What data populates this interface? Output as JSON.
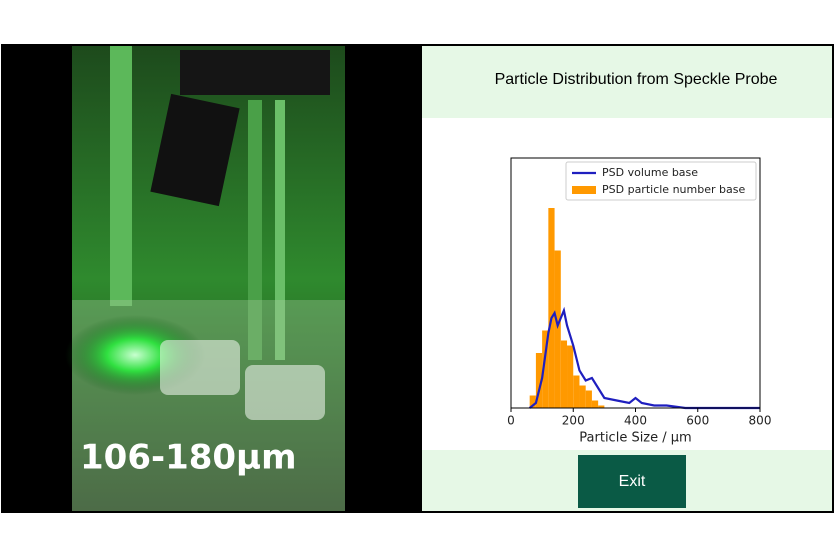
{
  "video": {
    "overlay_text": "106-180µm"
  },
  "header": {
    "title": "Particle Distribution from Speckle Probe"
  },
  "chart_data": {
    "type": "histogram",
    "xlabel": "Particle Size / µm",
    "xlim": [
      0,
      800
    ],
    "xticks": [
      0,
      200,
      400,
      600,
      800
    ],
    "ylim": [
      0,
      1
    ],
    "legend": "top-right",
    "bins": [
      60,
      80,
      100,
      120,
      140,
      160,
      180,
      200,
      220,
      240,
      260,
      280,
      300
    ],
    "series": [
      {
        "name": "PSD volume base",
        "type": "line",
        "color": "#1f1fbf",
        "x": [
          60,
          80,
          100,
          120,
          130,
          140,
          150,
          160,
          170,
          180,
          200,
          220,
          240,
          260,
          280,
          300,
          340,
          380,
          400,
          420,
          460,
          500,
          560,
          620,
          700,
          800
        ],
        "values": [
          0,
          0.02,
          0.12,
          0.3,
          0.36,
          0.38,
          0.33,
          0.36,
          0.39,
          0.33,
          0.25,
          0.15,
          0.11,
          0.12,
          0.08,
          0.04,
          0.03,
          0.02,
          0.04,
          0.02,
          0.01,
          0.01,
          0,
          0,
          0,
          0
        ]
      },
      {
        "name": "PSD particle number base",
        "type": "histogram",
        "color": "#ff9900",
        "values": [
          0.05,
          0.22,
          0.31,
          0.8,
          0.63,
          0.27,
          0.25,
          0.13,
          0.09,
          0.07,
          0.03,
          0.01
        ]
      }
    ]
  },
  "button": {
    "label": "Exit"
  }
}
